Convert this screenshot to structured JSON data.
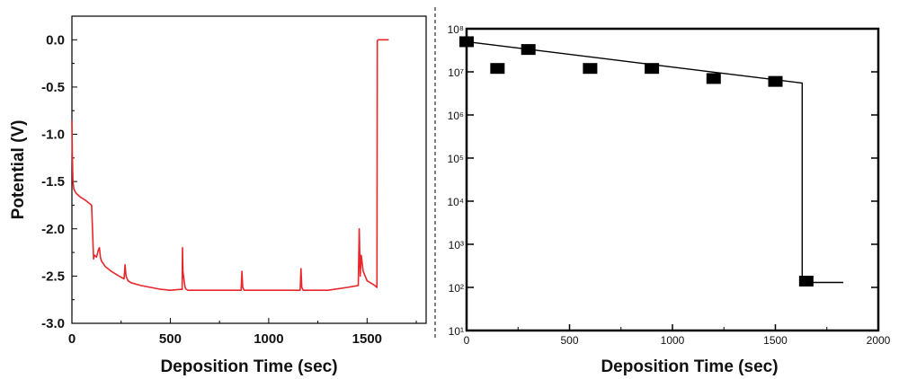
{
  "chart_data": [
    {
      "type": "line",
      "xlabel": "Deposition Time (sec)",
      "ylabel": "Potential (V)",
      "xlim": [
        0,
        1800
      ],
      "ylim": [
        -3.0,
        0.25
      ],
      "x_ticks": [
        0,
        500,
        1000,
        1500
      ],
      "x_tick_labels": [
        "0",
        "500",
        "1000",
        "1500"
      ],
      "y_ticks": [
        0.0,
        -0.5,
        -1.0,
        -1.5,
        -2.0,
        -2.5,
        -3.0
      ],
      "y_tick_labels": [
        "0.0",
        "-0.5",
        "-1.0",
        "-1.5",
        "-2.0",
        "-2.5",
        "-3.0"
      ],
      "grid": false,
      "color": "#e8262b",
      "x": [
        0,
        2,
        5,
        10,
        20,
        40,
        70,
        100,
        110,
        112,
        115,
        125,
        135,
        140,
        145,
        150,
        170,
        200,
        240,
        265,
        270,
        275,
        285,
        300,
        350,
        400,
        450,
        500,
        560,
        562,
        564,
        570,
        575,
        580,
        590,
        620,
        650,
        700,
        800,
        860,
        864,
        868,
        875,
        900,
        1000,
        1100,
        1160,
        1164,
        1168,
        1175,
        1200,
        1300,
        1400,
        1455,
        1460,
        1465,
        1470,
        1480,
        1500,
        1540,
        1550,
        1552,
        1556,
        1580,
        1610
      ],
      "y": [
        -0.85,
        -1.2,
        -1.5,
        -1.58,
        -1.62,
        -1.66,
        -1.7,
        -1.75,
        -2.32,
        -2.3,
        -2.28,
        -2.3,
        -2.22,
        -2.2,
        -2.3,
        -2.34,
        -2.4,
        -2.45,
        -2.5,
        -2.53,
        -2.38,
        -2.5,
        -2.55,
        -2.57,
        -2.6,
        -2.62,
        -2.64,
        -2.65,
        -2.64,
        -2.2,
        -2.45,
        -2.55,
        -2.62,
        -2.64,
        -2.65,
        -2.65,
        -2.65,
        -2.65,
        -2.65,
        -2.65,
        -2.45,
        -2.62,
        -2.65,
        -2.65,
        -2.65,
        -2.65,
        -2.65,
        -2.42,
        -2.62,
        -2.65,
        -2.65,
        -2.65,
        -2.62,
        -2.6,
        -2.0,
        -2.5,
        -2.28,
        -2.45,
        -2.55,
        -2.6,
        -2.62,
        -0.01,
        0.0,
        0.0,
        0.0
      ]
    },
    {
      "type": "scatter",
      "xlabel": "Deposition Time (sec)",
      "xlim": [
        0,
        2000
      ],
      "ylim_log10": [
        1,
        8
      ],
      "log_y": true,
      "x_ticks": [
        0,
        500,
        1000,
        1500,
        2000
      ],
      "x_tick_labels": [
        "0",
        "500",
        "1000",
        "1500",
        "2000"
      ],
      "y_ticks": [
        1,
        2,
        3,
        4,
        5,
        6,
        7,
        8
      ],
      "y_tick_labels": [
        "10¹",
        "10²",
        "10³",
        "10⁴",
        "10⁵",
        "10⁶",
        "10⁷",
        "10⁸"
      ],
      "grid": false,
      "points": {
        "x": [
          0,
          150,
          300,
          600,
          900,
          1200,
          1500,
          1650
        ],
        "y": [
          50000000,
          12000000,
          33000000,
          12000000,
          12000000,
          7000000,
          6000000,
          140
        ]
      },
      "fit_line": {
        "x": [
          0,
          1630,
          1630,
          1650,
          1830
        ],
        "y": [
          50000000,
          5500000,
          140,
          130,
          130
        ]
      }
    }
  ]
}
